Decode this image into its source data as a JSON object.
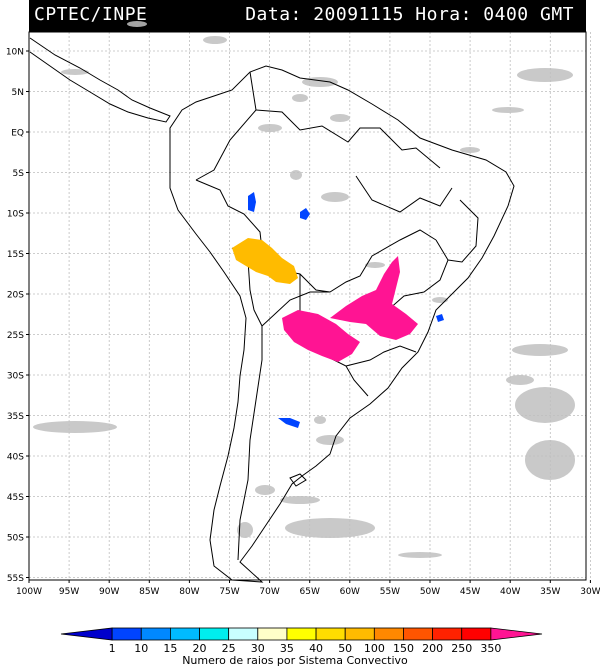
{
  "header": {
    "source": "CPTEC/INPE",
    "date_label": "Data:",
    "date_value": "20091115",
    "hour_label": "Hora:",
    "hour_value": "0400 GMT"
  },
  "lat_labels": [
    "10N",
    "5N",
    "EQ",
    "5S",
    "10S",
    "15S",
    "20S",
    "25S",
    "30S",
    "35S",
    "40S",
    "45S",
    "50S",
    "55S"
  ],
  "lon_labels": [
    "100W",
    "95W",
    "90W",
    "85W",
    "80W",
    "75W",
    "70W",
    "65W",
    "60W",
    "55W",
    "50W",
    "45W",
    "40W",
    "35W",
    "30W"
  ],
  "colorbar": {
    "ticks": [
      "1",
      "10",
      "15",
      "20",
      "25",
      "30",
      "35",
      "40",
      "50",
      "100",
      "150",
      "200",
      "250",
      "350"
    ],
    "colors": [
      "#0000cc",
      "#0044ff",
      "#0088ff",
      "#00bbff",
      "#00eeee",
      "#c8ffff",
      "#ffffc8",
      "#ffff00",
      "#ffdd00",
      "#ffbb00",
      "#ff8800",
      "#ff5500",
      "#ff2200",
      "#ff0000",
      "#ff1493"
    ],
    "label": "Numero de raios por Sistema Convectivo"
  },
  "map": {
    "background": "#ffffff",
    "land_outline": "#000000",
    "cloud_color": "#c0c0c0",
    "layers": [
      "coastline-and-borders",
      "cloud-mask",
      "convective-systems"
    ]
  }
}
